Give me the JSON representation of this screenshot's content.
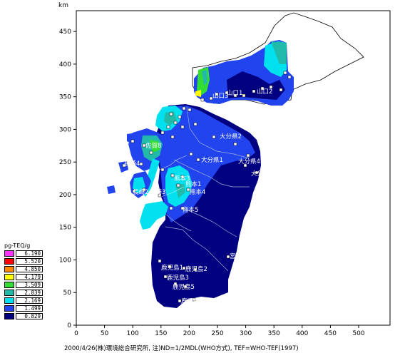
{
  "map": {
    "y_unit": "km",
    "x_ticks": [
      "0",
      "50",
      "100",
      "150",
      "200",
      "250",
      "300",
      "350",
      "400",
      "450",
      "500"
    ],
    "y_ticks": [
      "0",
      "50",
      "100",
      "150",
      "200",
      "250",
      "300",
      "350",
      "400",
      "450"
    ],
    "labels": [
      {
        "id": "yamaguchi-1",
        "text": "山口1"
      },
      {
        "id": "yamaguchi-2",
        "text": "山口2"
      },
      {
        "id": "yamaguchi-3",
        "text": "山口3"
      },
      {
        "id": "oita-1",
        "text": "大分県1"
      },
      {
        "id": "oita-2",
        "text": "大分県2"
      },
      {
        "id": "oita-4",
        "text": "大分県4"
      },
      {
        "id": "oita-5",
        "text": "大分県5"
      },
      {
        "id": "saga-8",
        "text": "佐賀8"
      },
      {
        "id": "nagasaki-4",
        "text": "長崎4"
      },
      {
        "id": "nagasaki-2",
        "text": "長崎2"
      },
      {
        "id": "nagasaki-3",
        "text": "長崎3"
      },
      {
        "id": "kumamoto-1",
        "text": "熊本1"
      },
      {
        "id": "kumamoto-3",
        "text": "熊本3"
      },
      {
        "id": "kumamoto-4",
        "text": "熊本4"
      },
      {
        "id": "kumamoto-5",
        "text": "熊本5"
      },
      {
        "id": "miyazaki",
        "text": "宮崎"
      },
      {
        "id": "kagoshima-1",
        "text": "鹿児島1"
      },
      {
        "id": "kagoshima-2",
        "text": "鹿児島2"
      },
      {
        "id": "kagoshima-3",
        "text": "鹿児島3"
      },
      {
        "id": "kagoshima-4",
        "text": "鹿児島4"
      },
      {
        "id": "kagoshima-5",
        "text": "鹿児島5"
      }
    ]
  },
  "legend": {
    "title": "pg-TEQ/g",
    "items": [
      {
        "value": "6.190",
        "color": "#ff33ff"
      },
      {
        "value": "5.520",
        "color": "#ff0000"
      },
      {
        "value": "4.850",
        "color": "#ff8800"
      },
      {
        "value": "4.179",
        "color": "#ffff00"
      },
      {
        "value": "3.509",
        "color": "#33dd33"
      },
      {
        "value": "2.839",
        "color": "#22bbaa"
      },
      {
        "value": "2.169",
        "color": "#00e0ee"
      },
      {
        "value": "1.499",
        "color": "#2244ee"
      },
      {
        "value": "0.829",
        "color": "#000080"
      }
    ]
  },
  "footer": {
    "text": "2000/4/26(株)環境総合研究所, 注)ND=1/2MDL(WHO方式), TEF=WHO-TEF(1997)"
  }
}
